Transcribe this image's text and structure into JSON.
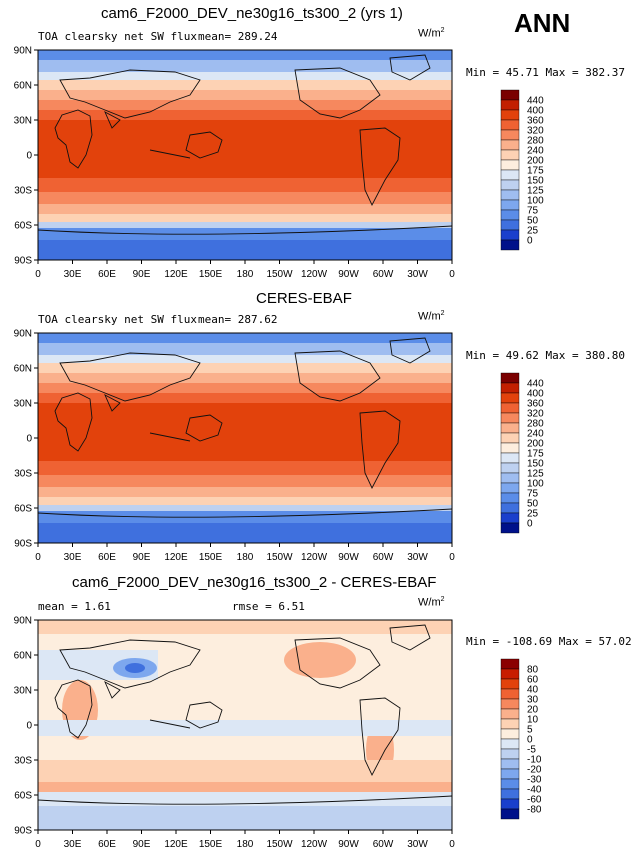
{
  "season": "ANN",
  "panels": [
    {
      "title": "cam6_F2000_DEV_ne30g16_ts300_2 (yrs 1)",
      "label_left": "TOA clearsky net SW flux",
      "stat_left": "mean=  289.24",
      "stat_right": "",
      "units": "W/m",
      "units_exp": "2",
      "minmax": "Min =   45.71  Max =  382.37",
      "legend_labels": [
        "440",
        "400",
        "360",
        "320",
        "280",
        "240",
        "200",
        "175",
        "150",
        "125",
        "100",
        "75",
        "50",
        "25",
        "0"
      ],
      "legend_colors": [
        "#7a0000",
        "#c21f00",
        "#e2420c",
        "#ef6233",
        "#f6885e",
        "#fab08c",
        "#fdd2b4",
        "#fdeede",
        "#dce7f5",
        "#bed1f0",
        "#9fbdf0",
        "#7da7ee",
        "#5b8de8",
        "#3f70de",
        "#1a3fcc",
        "#00118a"
      ]
    },
    {
      "title": "CERES-EBAF",
      "label_left": "TOA clearsky net SW flux",
      "stat_left": "mean=  287.62",
      "stat_right": "",
      "units": "W/m",
      "units_exp": "2",
      "minmax": "Min =   49.62  Max =  380.80",
      "legend_labels": [
        "440",
        "400",
        "360",
        "320",
        "280",
        "240",
        "200",
        "175",
        "150",
        "125",
        "100",
        "75",
        "50",
        "25",
        "0"
      ],
      "legend_colors": [
        "#7a0000",
        "#c21f00",
        "#e2420c",
        "#ef6233",
        "#f6885e",
        "#fab08c",
        "#fdd2b4",
        "#fdeede",
        "#dce7f5",
        "#bed1f0",
        "#9fbdf0",
        "#7da7ee",
        "#5b8de8",
        "#3f70de",
        "#1a3fcc",
        "#00118a"
      ]
    },
    {
      "title": "cam6_F2000_DEV_ne30g16_ts300_2 - CERES-EBAF",
      "label_left": "mean =    1.61",
      "stat_left": "",
      "stat_right": "rmse =    6.51",
      "units": "W/m",
      "units_exp": "2",
      "minmax": "Min = -108.69  Max =   57.02",
      "legend_labels": [
        "80",
        "60",
        "40",
        "30",
        "20",
        "10",
        "5",
        "0",
        "-5",
        "-10",
        "-20",
        "-30",
        "-40",
        "-60",
        "-80"
      ],
      "legend_colors": [
        "#8b0000",
        "#c81c00",
        "#e2420c",
        "#ef6233",
        "#f6885e",
        "#fab08c",
        "#fdd2b4",
        "#fdeede",
        "#dce7f5",
        "#bed1f0",
        "#9fbdf0",
        "#7da7ee",
        "#5b8de8",
        "#3f70de",
        "#1a3fcc",
        "#00118a"
      ]
    }
  ],
  "lat_ticks": [
    "90N",
    "60N",
    "30N",
    "0",
    "30S",
    "60S",
    "90S"
  ],
  "lon_ticks": [
    "0",
    "30E",
    "60E",
    "90E",
    "120E",
    "150E",
    "180",
    "150W",
    "120W",
    "90W",
    "60W",
    "30W",
    "0"
  ],
  "chart_data": [
    {
      "type": "heatmap",
      "title": "cam6_F2000_DEV_ne30g16_ts300_2 (yrs 1)",
      "variable": "TOA clearsky net SW flux",
      "units": "W/m2",
      "mean": 289.24,
      "min": 45.71,
      "max": 382.37,
      "contour_levels": [
        0,
        25,
        50,
        75,
        100,
        125,
        150,
        175,
        200,
        240,
        280,
        320,
        360,
        400,
        440
      ],
      "x_axis": "longitude",
      "y_axis": "latitude",
      "lat_range": [
        -90,
        90
      ],
      "lon_range": [
        0,
        360
      ]
    },
    {
      "type": "heatmap",
      "title": "CERES-EBAF",
      "variable": "TOA clearsky net SW flux",
      "units": "W/m2",
      "mean": 287.62,
      "min": 49.62,
      "max": 380.8,
      "contour_levels": [
        0,
        25,
        50,
        75,
        100,
        125,
        150,
        175,
        200,
        240,
        280,
        320,
        360,
        400,
        440
      ],
      "x_axis": "longitude",
      "y_axis": "latitude",
      "lat_range": [
        -90,
        90
      ],
      "lon_range": [
        0,
        360
      ]
    },
    {
      "type": "heatmap",
      "title": "cam6_F2000_DEV_ne30g16_ts300_2 - CERES-EBAF",
      "units": "W/m2",
      "mean": 1.61,
      "rmse": 6.51,
      "min": -108.69,
      "max": 57.02,
      "contour_levels": [
        -80,
        -60,
        -40,
        -30,
        -20,
        -10,
        -5,
        0,
        5,
        10,
        20,
        30,
        40,
        60,
        80
      ],
      "x_axis": "longitude",
      "y_axis": "latitude",
      "lat_range": [
        -90,
        90
      ],
      "lon_range": [
        0,
        360
      ]
    }
  ]
}
